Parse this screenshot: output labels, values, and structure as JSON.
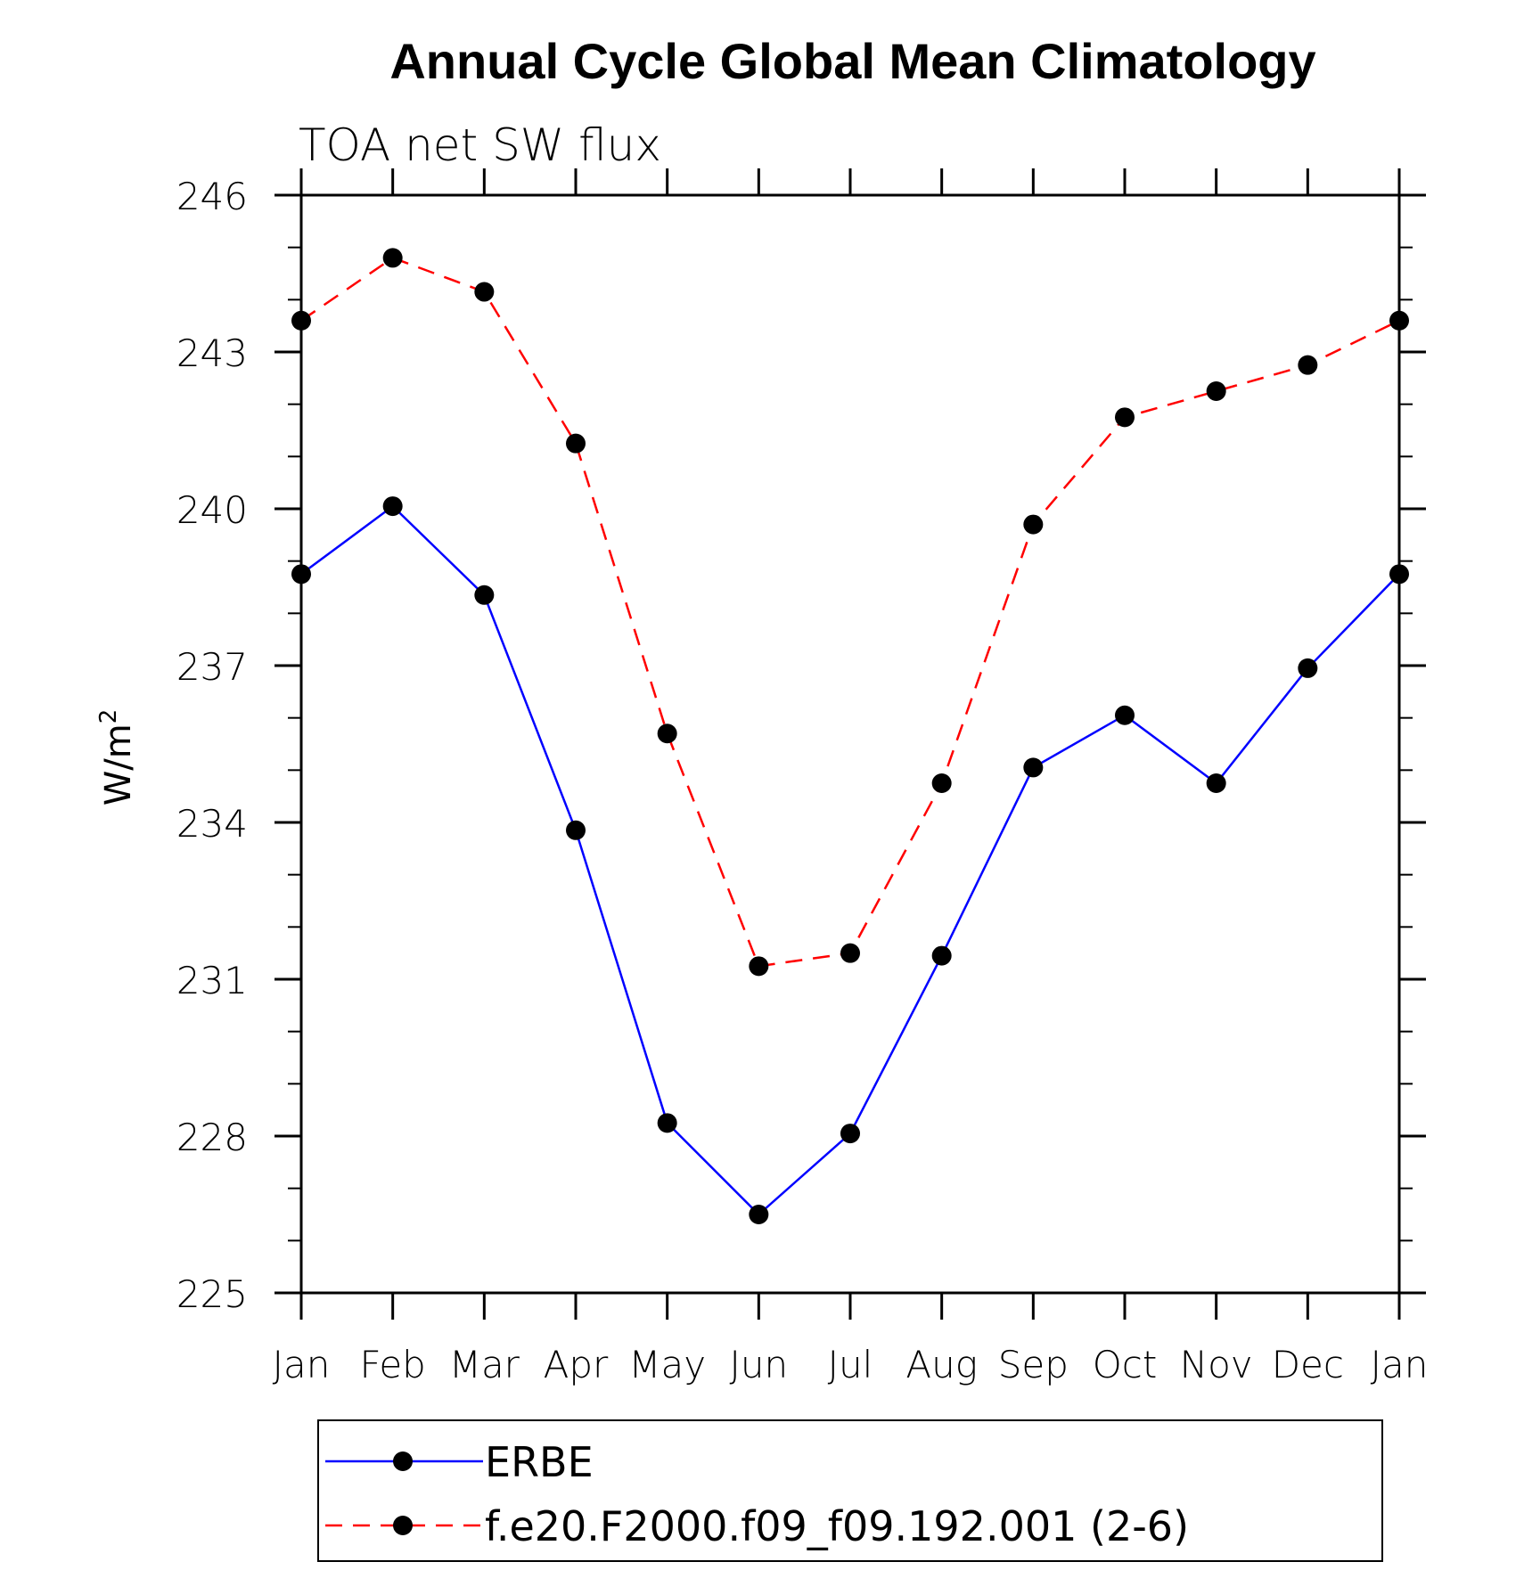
{
  "chart_data": {
    "type": "line",
    "title": "Annual Cycle Global Mean Climatology",
    "subtitle": "TOA net SW flux",
    "xlabel": "",
    "ylabel_base": "W/m",
    "ylabel_sup": "2",
    "categories": [
      "Jan",
      "Feb",
      "Mar",
      "Apr",
      "May",
      "Jun",
      "Jul",
      "Aug",
      "Sep",
      "Oct",
      "Nov",
      "Dec",
      "Jan"
    ],
    "ylim": [
      225,
      246
    ],
    "yticks": [
      225,
      228,
      231,
      234,
      237,
      240,
      243,
      246
    ],
    "y_minor_step": 1,
    "series": [
      {
        "name": "ERBE",
        "color": "#0000ff",
        "dash": "solid",
        "marker": "filled-circle",
        "values": [
          238.75,
          240.05,
          238.35,
          233.85,
          228.25,
          226.5,
          228.05,
          231.45,
          235.05,
          236.05,
          234.75,
          236.95,
          238.75
        ]
      },
      {
        "name": "f.e20.F2000.f09_f09.192.001 (2-6)",
        "color": "#ff0000",
        "dash": "dashed",
        "marker": "filled-circle",
        "values": [
          243.6,
          244.8,
          244.15,
          241.25,
          235.7,
          231.25,
          231.5,
          234.75,
          239.7,
          241.75,
          242.25,
          242.75,
          243.6
        ]
      }
    ],
    "grid": false,
    "legend_position": "bottom"
  }
}
